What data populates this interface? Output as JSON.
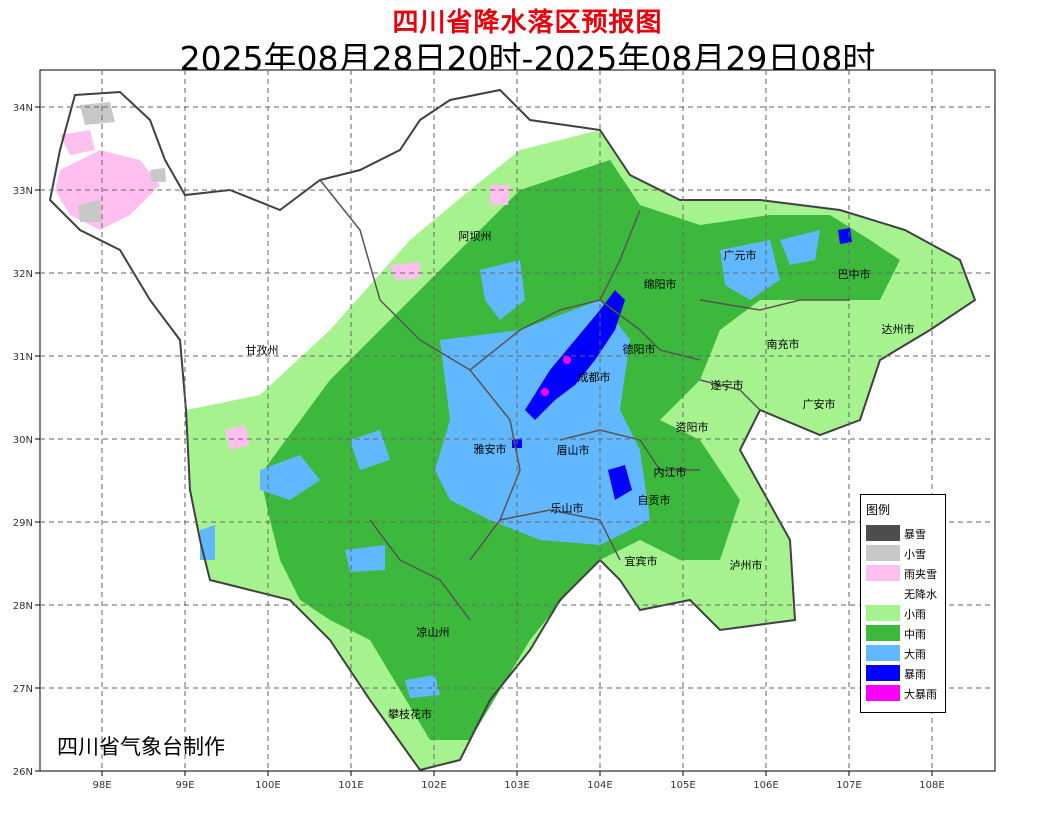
{
  "title": "四川省降水落区预报图",
  "subtitle": "2025年08月28日20时-2025年08月29日08时",
  "credit": "四川省气象台制作",
  "axes": {
    "x_ticks": [
      "98E",
      "99E",
      "100E",
      "101E",
      "102E",
      "103E",
      "104E",
      "105E",
      "106E",
      "107E",
      "108E"
    ],
    "y_ticks": [
      "34N",
      "33N",
      "32N",
      "31N",
      "30N",
      "29N",
      "28N",
      "27N",
      "26N"
    ]
  },
  "legend": {
    "title": "图例",
    "items": [
      {
        "label": "暴雪",
        "color": "#4d4d4d"
      },
      {
        "label": "小雪",
        "color": "#c8c8c8"
      },
      {
        "label": "雨夹雪",
        "color": "#ffbfef"
      },
      {
        "label": "无降水",
        "color": "#ffffff"
      },
      {
        "label": "小雨",
        "color": "#a6f28f"
      },
      {
        "label": "中雨",
        "color": "#3cb93c"
      },
      {
        "label": "大雨",
        "color": "#62b8ff"
      },
      {
        "label": "暴雨",
        "color": "#0000fe"
      },
      {
        "label": "大暴雨",
        "color": "#fa00fa"
      }
    ]
  },
  "cities": [
    "阿坝州",
    "甘孜州",
    "广元市",
    "巴中市",
    "绵阳市",
    "达州市",
    "德阳市",
    "南充市",
    "成都市",
    "遂宁市",
    "广安市",
    "资阳市",
    "雅安市",
    "眉山市",
    "内江市",
    "乐山市",
    "自贡市",
    "宜宾市",
    "泸州市",
    "凉山州",
    "攀枝花市"
  ]
}
